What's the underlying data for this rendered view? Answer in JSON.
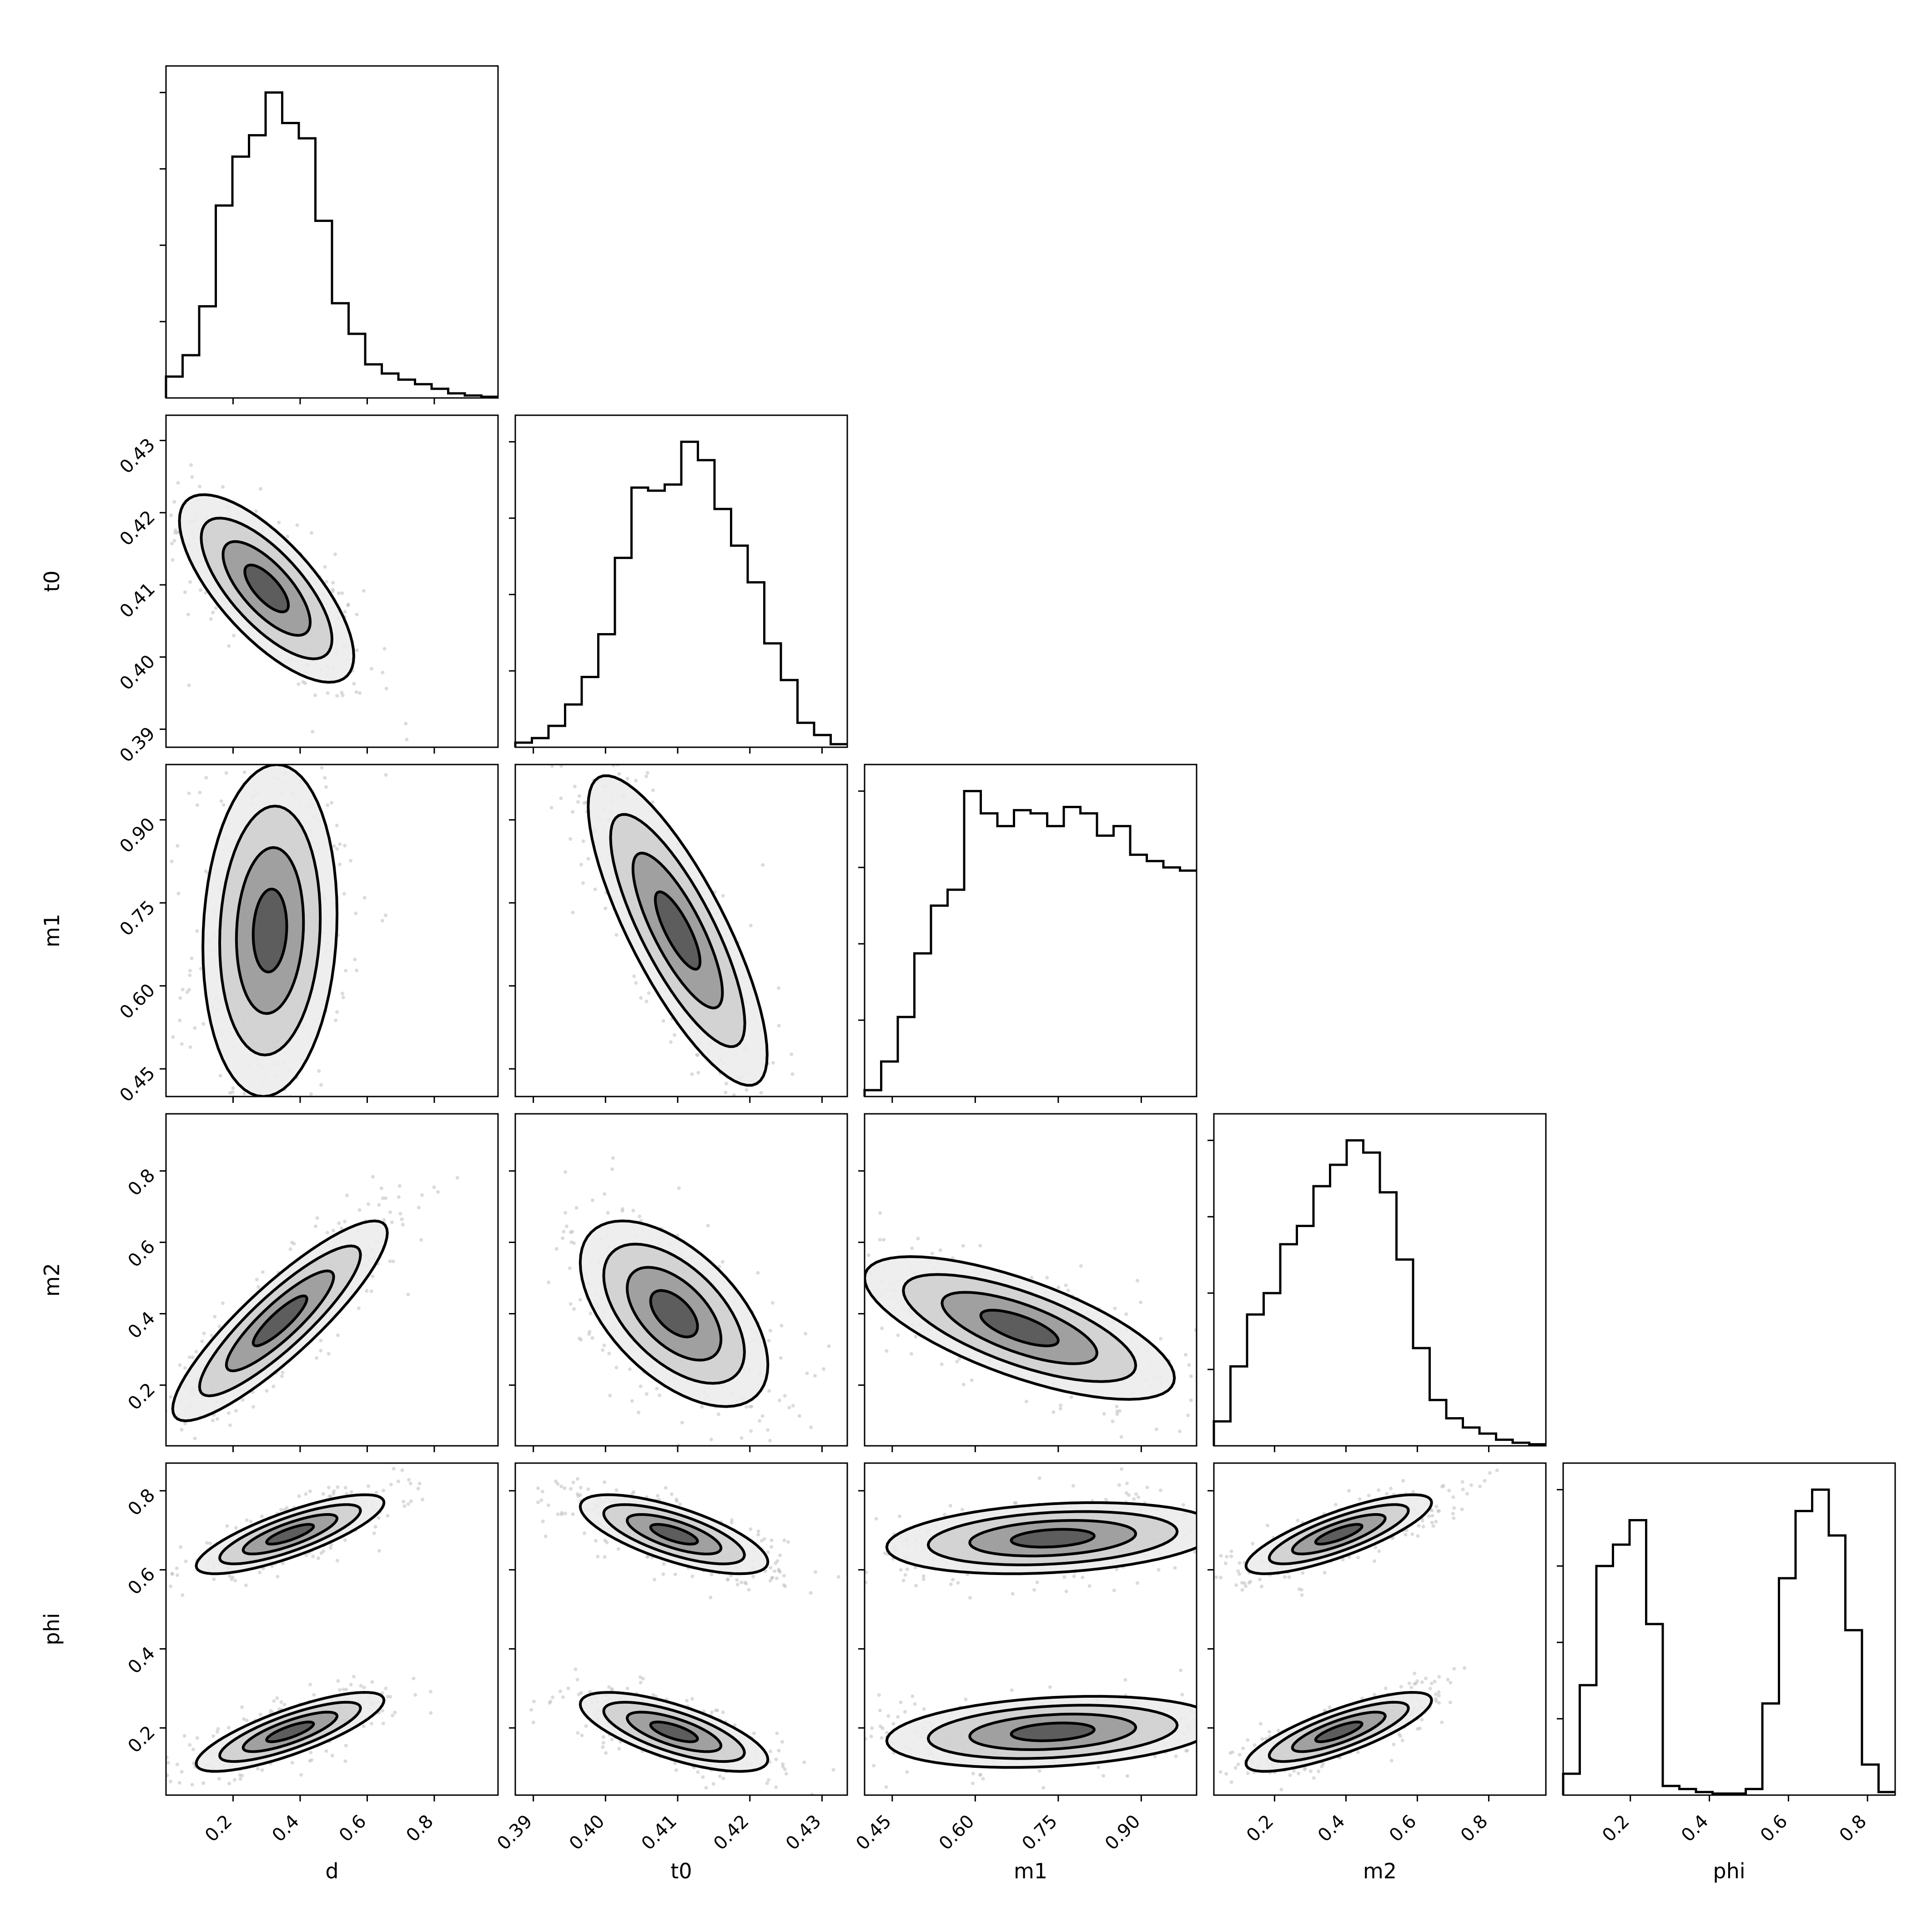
{
  "colors": {
    "background": "#ffffff",
    "ink": "#000000",
    "scatter": "#bdbdbd"
  },
  "chart_data": {
    "type": "corner",
    "parameters": [
      "d",
      "t0",
      "m1",
      "m2",
      "phi"
    ],
    "axis_labels": {
      "d": "d",
      "t0": "t0",
      "m1": "m1",
      "m2": "m2",
      "phi": "phi"
    },
    "ranges": {
      "d": [
        0.0,
        0.99
      ],
      "t0": [
        0.3875,
        0.4335
      ],
      "m1": [
        0.4,
        1.0
      ],
      "m2": [
        0.03,
        0.96
      ],
      "phi": [
        0.03,
        0.87
      ]
    },
    "ticks": {
      "d": {
        "values": [
          0.2,
          0.4,
          0.6,
          0.8
        ],
        "labels": [
          "0.2",
          "0.4",
          "0.6",
          "0.8"
        ]
      },
      "t0": {
        "values": [
          0.39,
          0.4,
          0.41,
          0.42,
          0.43
        ],
        "labels": [
          "0.39",
          "0.40",
          "0.41",
          "0.42",
          "0.43"
        ]
      },
      "m1": {
        "values": [
          0.45,
          0.6,
          0.75,
          0.9
        ],
        "labels": [
          "0.45",
          "0.60",
          "0.75",
          "0.90"
        ]
      },
      "m2": {
        "values": [
          0.2,
          0.4,
          0.6,
          0.8
        ],
        "labels": [
          "0.2",
          "0.4",
          "0.6",
          "0.8"
        ]
      },
      "phi": {
        "values": [
          0.2,
          0.4,
          0.6,
          0.8
        ],
        "labels": [
          "0.2",
          "0.4",
          "0.6",
          "0.8"
        ]
      }
    },
    "histograms": {
      "d": {
        "bins": 20,
        "counts": [
          0.07,
          0.14,
          0.3,
          0.63,
          0.79,
          0.86,
          1.0,
          0.9,
          0.85,
          0.58,
          0.31,
          0.21,
          0.11,
          0.08,
          0.06,
          0.045,
          0.03,
          0.015,
          0.008,
          0.004
        ]
      },
      "t0": {
        "bins": 20,
        "counts": [
          0.015,
          0.03,
          0.07,
          0.14,
          0.23,
          0.37,
          0.62,
          0.85,
          0.84,
          0.86,
          1.0,
          0.94,
          0.78,
          0.66,
          0.54,
          0.34,
          0.22,
          0.08,
          0.04,
          0.01
        ]
      },
      "m1": {
        "bins": 20,
        "counts": [
          0.02,
          0.11,
          0.25,
          0.45,
          0.6,
          0.65,
          0.96,
          0.89,
          0.85,
          0.9,
          0.89,
          0.85,
          0.91,
          0.89,
          0.82,
          0.85,
          0.76,
          0.74,
          0.72,
          0.71
        ]
      },
      "m2": {
        "bins": 20,
        "counts": [
          0.08,
          0.26,
          0.43,
          0.5,
          0.66,
          0.72,
          0.85,
          0.92,
          1.0,
          0.96,
          0.83,
          0.61,
          0.32,
          0.15,
          0.09,
          0.06,
          0.04,
          0.02,
          0.01,
          0.005
        ]
      },
      "phi": {
        "bins": 20,
        "counts": [
          0.07,
          0.36,
          0.75,
          0.82,
          0.9,
          0.56,
          0.03,
          0.02,
          0.01,
          0.005,
          0.005,
          0.02,
          0.3,
          0.71,
          0.93,
          1.0,
          0.85,
          0.54,
          0.1,
          0.01
        ]
      }
    },
    "pair_contours": [
      {
        "x": "d",
        "y": "t0",
        "rho": -0.72,
        "x_mean": 0.3,
        "x_sd": 0.13,
        "y_mean": 0.4095,
        "y_sd": 0.0065
      },
      {
        "x": "d",
        "y": "m1",
        "rho": 0.1,
        "x_mean": 0.31,
        "x_sd": 0.1,
        "y_mean": 0.7,
        "y_sd": 0.15
      },
      {
        "x": "t0",
        "y": "m1",
        "rho": -0.8,
        "x_mean": 0.41,
        "x_sd": 0.0062,
        "y_mean": 0.7,
        "y_sd": 0.14
      },
      {
        "x": "d",
        "y": "m2",
        "rho": 0.88,
        "x_mean": 0.34,
        "x_sd": 0.16,
        "y_mean": 0.38,
        "y_sd": 0.14
      },
      {
        "x": "t0",
        "y": "m2",
        "rho": -0.55,
        "x_mean": 0.4095,
        "x_sd": 0.0065,
        "y_mean": 0.4,
        "y_sd": 0.13
      },
      {
        "x": "m1",
        "y": "m2",
        "rho": -0.7,
        "x_mean": 0.68,
        "x_sd": 0.14,
        "y_mean": 0.36,
        "y_sd": 0.1
      },
      {
        "x": "d",
        "y": "phi",
        "rho": 0.8,
        "x_mean": 0.37,
        "x_sd": 0.14,
        "y_mean": 0.69,
        "y_sd": 0.05
      },
      {
        "x": "d",
        "y": "phi",
        "rho": 0.8,
        "x_mean": 0.37,
        "x_sd": 0.14,
        "y_mean": 0.19,
        "y_sd": 0.05
      },
      {
        "x": "t0",
        "y": "phi",
        "rho": -0.7,
        "x_mean": 0.4095,
        "x_sd": 0.0065,
        "y_mean": 0.69,
        "y_sd": 0.05
      },
      {
        "x": "t0",
        "y": "phi",
        "rho": -0.7,
        "x_mean": 0.4095,
        "x_sd": 0.0065,
        "y_mean": 0.19,
        "y_sd": 0.05
      },
      {
        "x": "m1",
        "y": "phi",
        "rho": 0.25,
        "x_mean": 0.74,
        "x_sd": 0.15,
        "y_mean": 0.68,
        "y_sd": 0.045
      },
      {
        "x": "m1",
        "y": "phi",
        "rho": 0.25,
        "x_mean": 0.74,
        "x_sd": 0.15,
        "y_mean": 0.19,
        "y_sd": 0.045
      },
      {
        "x": "m2",
        "y": "phi",
        "rho": 0.8,
        "x_mean": 0.38,
        "x_sd": 0.13,
        "y_mean": 0.69,
        "y_sd": 0.05
      },
      {
        "x": "m2",
        "y": "phi",
        "rho": 0.8,
        "x_mean": 0.38,
        "x_sd": 0.13,
        "y_mean": 0.19,
        "y_sd": 0.05
      }
    ],
    "contour_levels_sigma": [
      0.5,
      1.0,
      1.5,
      2.0
    ]
  }
}
